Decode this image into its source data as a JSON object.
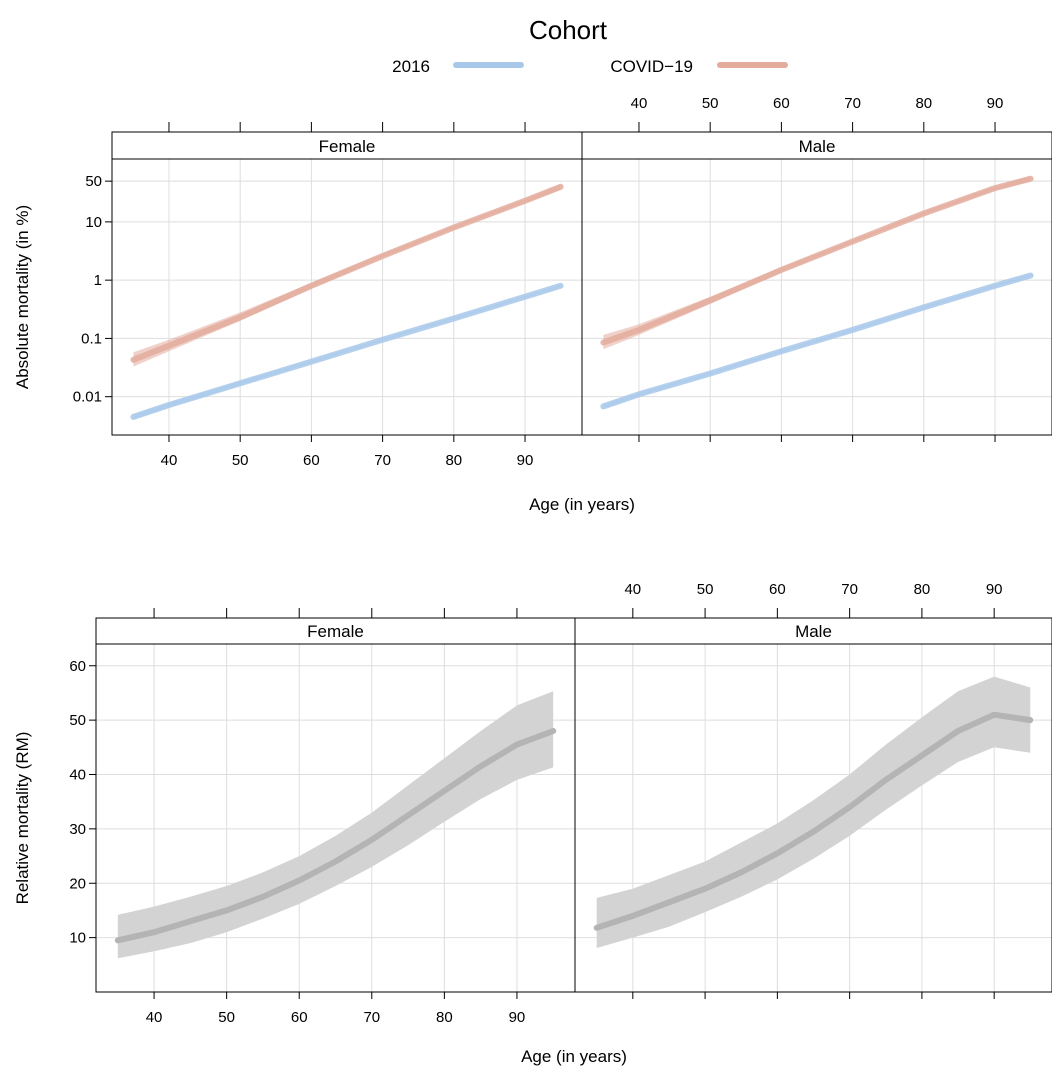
{
  "colors": {
    "cohort_2016": "#a8c8ea",
    "cohort_covid": "#e3ac9c",
    "relative": "#b4b4b4",
    "band_relative": "#d3d3d3",
    "grid": "#dedede",
    "strip_bg": "#ffffff"
  },
  "legend": {
    "title": "Cohort",
    "items": [
      {
        "label": "2016",
        "color_key": "cohort_2016"
      },
      {
        "label": "COVID−19",
        "color_key": "cohort_covid"
      }
    ]
  },
  "chart_data": [
    {
      "type": "line",
      "scale": "log",
      "xlabel": "Age (in years)",
      "ylabel": "Absolute mortality (in %)",
      "xlim": [
        32,
        98
      ],
      "ylim": [
        0.0022,
        120
      ],
      "xticks": [
        40,
        50,
        60,
        70,
        80,
        90
      ],
      "yticks": [
        0.01,
        0.1,
        1,
        10,
        50
      ],
      "ytick_labels": [
        "0.01",
        "0.1",
        "1",
        "10",
        "50"
      ],
      "panels": [
        {
          "strip": "Female",
          "series": [
            {
              "name": "2016",
              "color_key": "cohort_2016",
              "x": [
                35,
                40,
                50,
                60,
                70,
                80,
                90,
                95
              ],
              "y": [
                0.0045,
                0.0072,
                0.017,
                0.04,
                0.095,
                0.22,
                0.52,
                0.8
              ],
              "lower": [
                0.0041,
                0.0066,
                0.0158,
                0.038,
                0.091,
                0.21,
                0.5,
                0.76
              ],
              "upper": [
                0.0049,
                0.0078,
                0.0182,
                0.042,
                0.099,
                0.23,
                0.54,
                0.84
              ]
            },
            {
              "name": "COVID−19",
              "color_key": "cohort_covid",
              "x": [
                35,
                40,
                50,
                60,
                70,
                80,
                90,
                95
              ],
              "y": [
                0.043,
                0.075,
                0.23,
                0.8,
                2.6,
                8.0,
                23,
                40
              ],
              "lower": [
                0.033,
                0.06,
                0.2,
                0.72,
                2.45,
                7.6,
                21.5,
                36
              ],
              "upper": [
                0.058,
                0.095,
                0.28,
                0.9,
                2.8,
                8.5,
                24.5,
                44
              ]
            }
          ]
        },
        {
          "strip": "Male",
          "series": [
            {
              "name": "2016",
              "color_key": "cohort_2016",
              "x": [
                35,
                40,
                50,
                60,
                70,
                80,
                90,
                95
              ],
              "y": [
                0.0068,
                0.011,
                0.025,
                0.06,
                0.14,
                0.34,
                0.8,
                1.2
              ],
              "lower": [
                0.0063,
                0.0103,
                0.0238,
                0.057,
                0.134,
                0.325,
                0.76,
                1.13
              ],
              "upper": [
                0.0073,
                0.0117,
                0.0262,
                0.063,
                0.146,
                0.355,
                0.84,
                1.27
              ]
            },
            {
              "name": "COVID−19",
              "color_key": "cohort_covid",
              "x": [
                35,
                40,
                50,
                60,
                70,
                80,
                90,
                95
              ],
              "y": [
                0.085,
                0.14,
                0.45,
                1.5,
                4.6,
                14,
                38,
                55
              ],
              "lower": [
                0.065,
                0.115,
                0.39,
                1.38,
                4.4,
                13.3,
                35.5,
                50
              ],
              "upper": [
                0.115,
                0.175,
                0.52,
                1.65,
                4.85,
                14.8,
                40.5,
                60
              ]
            }
          ]
        }
      ]
    },
    {
      "type": "line",
      "scale": "linear",
      "xlabel": "Age (in years)",
      "ylabel": "Relative mortality (RM)",
      "xlim": [
        32,
        98
      ],
      "ylim": [
        0,
        64
      ],
      "xticks": [
        40,
        50,
        60,
        70,
        80,
        90
      ],
      "yticks": [
        10,
        20,
        30,
        40,
        50,
        60
      ],
      "ytick_labels": [
        "10",
        "20",
        "30",
        "40",
        "50",
        "60"
      ],
      "panels": [
        {
          "strip": "Female",
          "series": [
            {
              "color_key": "relative",
              "band_key": "band_relative",
              "x": [
                35,
                40,
                45,
                50,
                55,
                60,
                65,
                70,
                75,
                80,
                85,
                90,
                95
              ],
              "y": [
                9.5,
                11,
                13,
                15,
                17.5,
                20.5,
                24,
                28,
                32.5,
                37,
                41.5,
                45.5,
                48
              ],
              "lower": [
                6.2,
                7.5,
                9,
                11,
                13.5,
                16.2,
                19.5,
                23,
                27,
                31.3,
                35.5,
                39,
                41.3
              ],
              "upper": [
                14.2,
                15.7,
                17.5,
                19.5,
                22,
                25,
                28.7,
                33,
                38,
                43,
                48,
                52.7,
                55.3
              ]
            }
          ]
        },
        {
          "strip": "Male",
          "series": [
            {
              "color_key": "relative",
              "band_key": "band_relative",
              "x": [
                35,
                40,
                45,
                50,
                55,
                60,
                65,
                70,
                75,
                80,
                85,
                90,
                95
              ],
              "y": [
                11.8,
                14,
                16.5,
                19,
                22,
                25.5,
                29.5,
                34,
                39,
                43.5,
                48,
                51,
                50
              ],
              "lower": [
                8.1,
                10,
                12,
                14.7,
                17.5,
                20.7,
                24.5,
                28.7,
                33.5,
                38,
                42.3,
                45,
                44
              ],
              "upper": [
                17.3,
                19,
                21.5,
                24,
                27.5,
                31,
                35.3,
                40,
                45.5,
                50.5,
                55.3,
                58,
                56
              ]
            }
          ]
        }
      ]
    }
  ]
}
